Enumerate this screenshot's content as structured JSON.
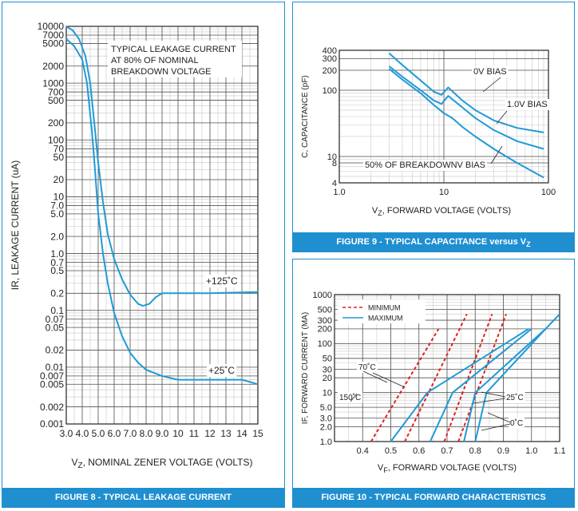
{
  "figures": [
    {
      "id": "fig8",
      "caption": "FIGURE 8 - TYPICAL LEAKAGE CURRENT",
      "xlabel": "V",
      "xlabel_sub": "Z",
      "xlabel_rest": ", NOMINAL ZENER VOLTAGE (VOLTS)",
      "ylabel": "IR,  LEAKAGE CURRENT (uA)",
      "annotation": [
        "TYPICAL LEAKAGE CURRENT",
        "AT 80% OF NOMINAL",
        "BREAKDOWN VOLTAGE"
      ]
    },
    {
      "id": "fig9",
      "caption": "FIGURE 9 - TYPICAL CAPACITANCE versus V",
      "caption_sub": "Z",
      "xlabel": "V",
      "xlabel_sub": "Z",
      "xlabel_rest": ", FORWARD VOLTAGE (VOLTS)",
      "ylabel": "C, CAPACITANCE (pF)"
    },
    {
      "id": "fig10",
      "caption": "FIGURE 10 - TYPICAL FORWARD CHARACTERISTICS",
      "xlabel": "V",
      "xlabel_sub": "F",
      "xlabel_rest": ", FORWARD VOLTAGE (VOLTS)",
      "ylabel": "IF, FORWARD CURRENT (MA)"
    }
  ],
  "chart_data": [
    {
      "type": "line",
      "x_scale": "linear",
      "y_scale": "log",
      "xlim": [
        3.0,
        15.0
      ],
      "ylim": [
        0.001,
        10000
      ],
      "x_ticks": [
        3.0,
        4.0,
        5.0,
        6.0,
        7.0,
        8.0,
        9.0,
        10,
        11,
        12,
        13,
        14,
        15
      ],
      "x_tick_labels": [
        "3.0",
        "4.0",
        "5.0",
        "6.0",
        "7.0",
        "8.0",
        "9.0",
        "10",
        "11",
        "12",
        "13",
        "14",
        "15"
      ],
      "y_ticks": [
        10000,
        7000,
        5000,
        2000,
        1000,
        700,
        500,
        200,
        100,
        70,
        50,
        20,
        10,
        7.0,
        5.0,
        2.0,
        1.0,
        0.7,
        0.5,
        0.2,
        0.1,
        0.07,
        0.05,
        0.02,
        0.01,
        0.007,
        0.005,
        0.002,
        0.001
      ],
      "y_tick_labels": [
        "10000",
        "7000",
        "5000",
        "2000",
        "1000",
        "700",
        "500",
        "200",
        "100",
        "70",
        "50",
        "20",
        "10",
        "7.0",
        "5.0",
        "2.0",
        "1.0",
        "0.7",
        "0.5",
        "0.2",
        "0.1",
        "0.07",
        "0.05",
        "0.02",
        "0.01",
        "0.007",
        "0.005",
        "0.002",
        "0.001"
      ],
      "grid": true,
      "series": [
        {
          "name": "+125˚C",
          "x": [
            3.0,
            3.4,
            3.8,
            4.2,
            4.5,
            4.8,
            5.0,
            5.3,
            5.6,
            6.0,
            6.5,
            7.0,
            7.5,
            7.8,
            8.2,
            8.6,
            9.0,
            10,
            12,
            15
          ],
          "y": [
            10000,
            8500,
            6000,
            3000,
            1000,
            150,
            40,
            8,
            2.2,
            0.8,
            0.35,
            0.19,
            0.13,
            0.12,
            0.13,
            0.17,
            0.2,
            0.2,
            0.2,
            0.21
          ]
        },
        {
          "name": "+25˚C",
          "x": [
            3.0,
            3.5,
            4.0,
            4.3,
            4.6,
            4.8,
            5.0,
            5.3,
            5.6,
            6.0,
            6.5,
            7.0,
            7.5,
            8.0,
            9.0,
            10,
            11,
            12,
            13,
            14,
            14.5,
            15
          ],
          "y": [
            6000,
            4500,
            2600,
            1000,
            150,
            30,
            5,
            1,
            0.3,
            0.09,
            0.035,
            0.018,
            0.012,
            0.009,
            0.007,
            0.006,
            0.006,
            0.006,
            0.006,
            0.006,
            0.0055,
            0.005
          ]
        }
      ]
    },
    {
      "type": "line",
      "x_scale": "log",
      "y_scale": "log",
      "xlim": [
        1.0,
        100
      ],
      "ylim": [
        4,
        400
      ],
      "x_ticks": [
        1.0,
        10,
        100
      ],
      "x_tick_labels": [
        "1.0",
        "10",
        "100"
      ],
      "y_ticks": [
        400,
        300,
        200,
        100,
        10,
        8,
        4
      ],
      "y_tick_labels": [
        "400",
        "300",
        "200",
        "100",
        "10",
        "8",
        "4"
      ],
      "grid": true,
      "series": [
        {
          "name": "0V BIAS",
          "x": [
            3.0,
            4.0,
            6.0,
            8.0,
            9.5,
            11.0,
            15,
            20,
            30,
            50,
            90
          ],
          "y": [
            360,
            240,
            140,
            95,
            85,
            110,
            70,
            50,
            35,
            27,
            23
          ]
        },
        {
          "name": "1.0V BIAS",
          "x": [
            3.0,
            4.0,
            6.0,
            8.0,
            9.5,
            11.0,
            15,
            20,
            30,
            50,
            90
          ],
          "y": [
            230,
            160,
            100,
            70,
            62,
            82,
            55,
            38,
            25,
            17,
            13
          ]
        },
        {
          "name": "50% OF BREAKDOWNV BIAS",
          "x": [
            3.0,
            4.0,
            6.0,
            8.0,
            10.0,
            12,
            15,
            20,
            30,
            50,
            90
          ],
          "y": [
            210,
            145,
            90,
            60,
            45,
            38,
            28,
            20,
            13,
            8,
            4.8
          ]
        }
      ]
    },
    {
      "type": "line",
      "x_scale": "linear",
      "y_scale": "log",
      "xlim": [
        0.3,
        1.1
      ],
      "ylim": [
        1.0,
        1000
      ],
      "x_ticks": [
        0.4,
        0.5,
        0.6,
        0.7,
        0.8,
        0.9,
        1.0,
        1.1
      ],
      "x_tick_labels": [
        "0.4",
        "0.5",
        "0.6",
        "0.7",
        "0.8",
        "0.9",
        "1.0",
        "1.1"
      ],
      "y_ticks": [
        1000,
        500,
        300,
        200,
        100,
        50,
        30,
        20,
        10,
        5.0,
        3.0,
        2.0,
        1.0
      ],
      "y_tick_labels": [
        "1000",
        "500",
        "300",
        "200",
        "100",
        "50",
        "30",
        "20",
        "10",
        "5.0",
        "3.0",
        "2.0",
        "1.0"
      ],
      "grid": true,
      "legend": [
        {
          "label": "MINIMUM",
          "style": "dashed",
          "color": "#e02020"
        },
        {
          "label": "MAXIMUM",
          "style": "solid",
          "color": "#1f9ad6"
        }
      ],
      "annotations": [
        "70˚C",
        "150˚C",
        "25˚C",
        "0˚C"
      ],
      "series": [
        {
          "name": "MINIMUM 150˚C",
          "style": "dashed",
          "x": [
            0.43,
            0.67
          ],
          "y": [
            1.0,
            200
          ]
        },
        {
          "name": "MINIMUM 70˚C",
          "style": "dashed",
          "x": [
            0.55,
            0.77
          ],
          "y": [
            1.0,
            400
          ]
        },
        {
          "name": "MINIMUM 25˚C",
          "style": "dashed",
          "x": [
            0.69,
            0.86
          ],
          "y": [
            1.0,
            400
          ]
        },
        {
          "name": "MINIMUM 0˚C",
          "style": "dashed",
          "x": [
            0.74,
            0.91
          ],
          "y": [
            1.0,
            400
          ]
        },
        {
          "name": "MAXIMUM 150˚C",
          "style": "solid",
          "x": [
            0.5,
            0.63,
            0.99
          ],
          "y": [
            1.0,
            10,
            200
          ]
        },
        {
          "name": "MAXIMUM 70˚C",
          "style": "solid",
          "x": [
            0.64,
            0.72,
            1.0
          ],
          "y": [
            1.0,
            10,
            200
          ]
        },
        {
          "name": "MAXIMUM 25˚C",
          "style": "solid",
          "x": [
            0.76,
            0.8,
            1.05
          ],
          "y": [
            1.0,
            10,
            200
          ]
        },
        {
          "name": "MAXIMUM 0˚C",
          "style": "solid",
          "x": [
            0.8,
            0.84,
            1.05,
            1.1
          ],
          "y": [
            1.0,
            10,
            200,
            400
          ]
        }
      ]
    }
  ]
}
